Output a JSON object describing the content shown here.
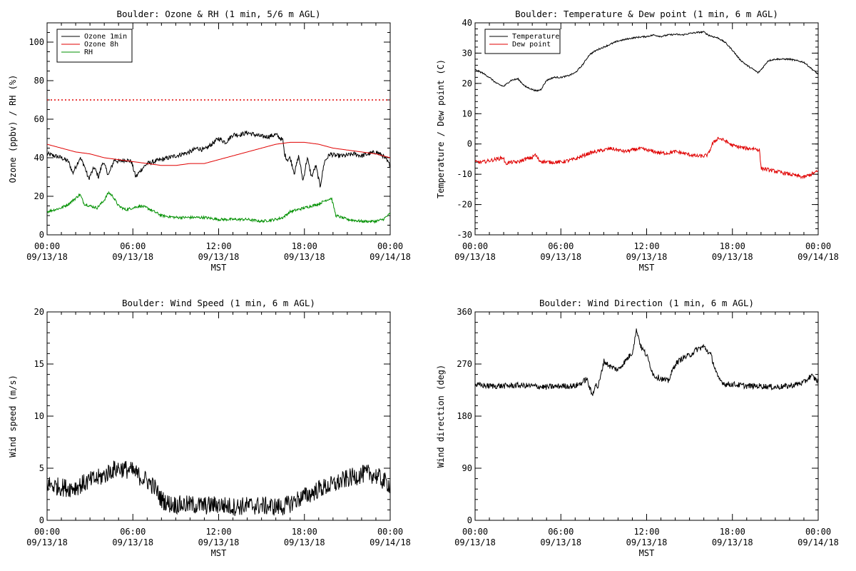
{
  "chart_data": [
    {
      "type": "line",
      "title": "Boulder: Ozone & RH (1 min, 5/6 m AGL)",
      "xlabel": "MST",
      "ylabel": "Ozone (ppbv) / RH (%)",
      "xlim_hours": [
        0,
        24
      ],
      "x_ticks": [
        {
          "time": "00:00",
          "date": "09/13/18"
        },
        {
          "time": "06:00",
          "date": "09/13/18"
        },
        {
          "time": "12:00",
          "date": "09/13/18"
        },
        {
          "time": "18:00",
          "date": "09/13/18"
        },
        {
          "time": "00:00",
          "date": "09/14/18"
        }
      ],
      "ylim": [
        0,
        110
      ],
      "y_ticks": [
        0,
        20,
        40,
        60,
        80,
        100
      ],
      "y_minor_step": 5,
      "legend_position": "top-left",
      "reference_line": {
        "y": 70,
        "color": "#e00000",
        "style": "dotted"
      },
      "series": [
        {
          "name": "Ozone 1min",
          "color": "#000000",
          "noise": 1.2,
          "x": [
            0,
            0.5,
            1,
            1.5,
            1.8,
            2.3,
            2.6,
            2.9,
            3.3,
            3.6,
            3.9,
            4.3,
            4.7,
            5.0,
            5.5,
            5.9,
            6.2,
            6.6,
            7.0,
            7.5,
            8.0,
            8.5,
            9.0,
            9.5,
            10.0,
            10.5,
            11.0,
            11.5,
            12.0,
            12.5,
            13.0,
            13.5,
            14.0,
            14.5,
            15.0,
            15.5,
            16.0,
            16.5,
            16.6,
            16.8,
            17.0,
            17.3,
            17.6,
            17.9,
            18.2,
            18.5,
            18.8,
            19.1,
            19.4,
            19.8,
            20.2,
            20.8,
            21.5,
            22.0,
            22.5,
            23.0,
            23.5,
            23.8,
            24.0
          ],
          "y": [
            42,
            41,
            40,
            38,
            32,
            40,
            36,
            29,
            35,
            30,
            38,
            31,
            39,
            38,
            39,
            38,
            30,
            34,
            37,
            38,
            39,
            40,
            41,
            42,
            43,
            45,
            44,
            47,
            50,
            48,
            52,
            52,
            53,
            52,
            51,
            51,
            52,
            49,
            42,
            39,
            40,
            32,
            41,
            28,
            40,
            30,
            36,
            25,
            38,
            42,
            41,
            41,
            42,
            41,
            42,
            43,
            41,
            38,
            36
          ]
        },
        {
          "name": "Ozone 8h",
          "color": "#e00000",
          "noise": 0,
          "x": [
            0,
            1,
            2,
            3,
            4,
            5,
            6,
            7,
            8,
            9,
            10,
            11,
            12,
            13,
            14,
            15,
            16,
            17,
            18,
            19,
            20,
            21,
            22,
            23,
            24
          ],
          "y": [
            47,
            45,
            43,
            42,
            40,
            39,
            38,
            37,
            36,
            36,
            37,
            37,
            39,
            41,
            43,
            45,
            47,
            48,
            48,
            47,
            45,
            44,
            43,
            42,
            40
          ]
        },
        {
          "name": "RH",
          "color": "#009000",
          "noise": 0.7,
          "x": [
            0,
            0.5,
            1,
            1.5,
            2,
            2.3,
            2.6,
            3,
            3.5,
            4,
            4.3,
            4.6,
            5,
            5.5,
            6,
            6.5,
            7,
            7.5,
            8,
            9,
            10,
            11,
            12,
            13,
            14,
            15,
            16,
            16.5,
            17,
            17.5,
            18,
            18.5,
            19,
            19.5,
            19.9,
            20.2,
            21,
            22,
            23,
            23.5,
            24
          ],
          "y": [
            12,
            13,
            14,
            16,
            19,
            21,
            16,
            15,
            14,
            18,
            22,
            20,
            15,
            13,
            14,
            15,
            14,
            12,
            10,
            9,
            9,
            9,
            8,
            8,
            8,
            7,
            8,
            9,
            12,
            13,
            14,
            15,
            16,
            18,
            19,
            10,
            8,
            7,
            7,
            8,
            11
          ]
        }
      ]
    },
    {
      "type": "line",
      "title": "Boulder: Temperature & Dew point (1 min, 6 m AGL)",
      "xlabel": "MST",
      "ylabel": "Temperature / Dew point (C)",
      "xlim_hours": [
        0,
        24
      ],
      "x_ticks": [
        {
          "time": "00:00",
          "date": "09/13/18"
        },
        {
          "time": "06:00",
          "date": "09/13/18"
        },
        {
          "time": "12:00",
          "date": "09/13/18"
        },
        {
          "time": "18:00",
          "date": "09/13/18"
        },
        {
          "time": "00:00",
          "date": "09/14/18"
        }
      ],
      "ylim": [
        -30,
        40
      ],
      "y_ticks": [
        -30,
        -20,
        -10,
        0,
        10,
        20,
        30,
        40
      ],
      "y_minor_step": 2,
      "legend_position": "top-left",
      "series": [
        {
          "name": "Temperature",
          "color": "#000000",
          "noise": 0.25,
          "x": [
            0,
            0.5,
            1,
            1.5,
            2,
            2.5,
            3,
            3.5,
            4,
            4.3,
            4.6,
            5,
            5.5,
            6,
            6.5,
            7,
            7.5,
            8,
            8.5,
            9,
            9.5,
            10,
            10.5,
            11,
            11.5,
            12,
            12.5,
            13,
            13.5,
            14,
            14.5,
            15,
            15.5,
            16,
            16.3,
            16.6,
            17,
            17.5,
            18,
            18.5,
            19,
            19.5,
            19.8,
            20,
            20.5,
            21,
            21.5,
            22,
            22.5,
            23,
            23.5,
            24
          ],
          "y": [
            24.5,
            23.5,
            22,
            20,
            19,
            21,
            21.5,
            19,
            18,
            17.5,
            18,
            21,
            22,
            22,
            22.5,
            23.5,
            26,
            29.5,
            31,
            32,
            33,
            34,
            34.5,
            35,
            35.3,
            35.5,
            36,
            35.5,
            36,
            36.2,
            36,
            36.5,
            36.8,
            37,
            36,
            35.5,
            35,
            33.5,
            31,
            28,
            26,
            24.5,
            23.5,
            24.5,
            27.5,
            28,
            28,
            28,
            27.5,
            27,
            25,
            23
          ]
        },
        {
          "name": "Dew point",
          "color": "#e00000",
          "noise": 0.6,
          "x": [
            0,
            0.5,
            1,
            1.5,
            2,
            2.1,
            2.5,
            3,
            3.5,
            4,
            4.2,
            4.5,
            5,
            5.5,
            6,
            6.5,
            7,
            7.5,
            8,
            8.5,
            9,
            9.5,
            10,
            10.5,
            11,
            11.5,
            12,
            12.5,
            13,
            13.5,
            14,
            14.5,
            15,
            15.5,
            16,
            16.3,
            16.6,
            17,
            17.5,
            18,
            18.5,
            19,
            19.5,
            19.9,
            20,
            20.5,
            21,
            21.5,
            22,
            22.5,
            23,
            23.5,
            24
          ],
          "y": [
            -6,
            -6,
            -5.5,
            -5,
            -4.5,
            -6.5,
            -6,
            -6,
            -5,
            -4.5,
            -3.5,
            -5.5,
            -6,
            -6,
            -6,
            -5.5,
            -5,
            -4,
            -3,
            -2.5,
            -2,
            -1.5,
            -2,
            -2.5,
            -2,
            -1.5,
            -2,
            -2.5,
            -3,
            -3,
            -2.5,
            -3,
            -3.5,
            -4,
            -4,
            -3.5,
            0,
            2,
            1,
            -0.5,
            -1,
            -1.5,
            -1.5,
            -2,
            -8,
            -8.5,
            -9,
            -9.5,
            -10,
            -10.5,
            -11,
            -10,
            -9
          ]
        }
      ]
    },
    {
      "type": "line",
      "title": "Boulder: Wind Speed (1 min, 6 m AGL)",
      "xlabel": "MST",
      "ylabel": "Wind speed (m/s)",
      "xlim_hours": [
        0,
        24
      ],
      "x_ticks": [
        {
          "time": "00:00",
          "date": "09/13/18"
        },
        {
          "time": "06:00",
          "date": "09/13/18"
        },
        {
          "time": "12:00",
          "date": "09/13/18"
        },
        {
          "time": "18:00",
          "date": "09/13/18"
        },
        {
          "time": "00:00",
          "date": "09/14/18"
        }
      ],
      "ylim": [
        0,
        20
      ],
      "y_ticks": [
        0,
        5,
        10,
        15,
        20
      ],
      "y_minor_step": 1,
      "series": [
        {
          "name": "",
          "color": "#000000",
          "noise": 0.9,
          "x": [
            0,
            0.5,
            1,
            1.5,
            2,
            2.5,
            3,
            3.5,
            4,
            4.5,
            5,
            5.5,
            6,
            6.5,
            7,
            7.5,
            8,
            8.5,
            9,
            10,
            11,
            12,
            13,
            14,
            15,
            16,
            16.5,
            17,
            17.5,
            18,
            18.5,
            19,
            19.5,
            20,
            20.5,
            21,
            21.5,
            22,
            22.5,
            23,
            23.5,
            24
          ],
          "y": [
            3.5,
            3.3,
            3.2,
            3.1,
            3.2,
            3.5,
            3.8,
            4.0,
            4.3,
            4.8,
            5.0,
            4.9,
            4.7,
            4.2,
            3.8,
            3.2,
            2.0,
            1.6,
            1.5,
            1.5,
            1.4,
            1.5,
            1.3,
            1.4,
            1.4,
            1.3,
            1.3,
            1.6,
            2.0,
            2.3,
            2.6,
            3.0,
            3.2,
            3.4,
            3.7,
            4.0,
            4.2,
            4.4,
            4.5,
            4.3,
            3.8,
            3.4
          ]
        }
      ]
    },
    {
      "type": "line",
      "title": "Boulder: Wind Direction (1 min, 6 m AGL)",
      "xlabel": "MST",
      "ylabel": "Wind direction (deg)",
      "xlim_hours": [
        0,
        24
      ],
      "x_ticks": [
        {
          "time": "00:00",
          "date": "09/13/18"
        },
        {
          "time": "06:00",
          "date": "09/13/18"
        },
        {
          "time": "12:00",
          "date": "09/13/18"
        },
        {
          "time": "18:00",
          "date": "09/13/18"
        },
        {
          "time": "00:00",
          "date": "09/14/18"
        }
      ],
      "ylim": [
        0,
        360
      ],
      "y_ticks": [
        0,
        90,
        180,
        270,
        360
      ],
      "y_minor_step": 18,
      "series": [
        {
          "name": "",
          "color": "#000000",
          "noise": 5,
          "x": [
            0,
            1,
            2,
            3,
            4,
            5,
            6,
            7,
            7.5,
            7.8,
            8,
            8.2,
            8.4,
            8.6,
            8.8,
            9,
            9.5,
            10,
            10.5,
            11,
            11.3,
            11.6,
            12,
            12.5,
            13,
            13.5,
            14,
            14.5,
            15,
            15.5,
            16,
            16.5,
            17,
            17.5,
            18,
            19,
            20,
            21,
            22,
            23,
            23.5,
            24
          ],
          "y": [
            234,
            232,
            232,
            233,
            232,
            230,
            232,
            232,
            238,
            245,
            230,
            215,
            235,
            230,
            250,
            275,
            265,
            260,
            275,
            290,
            330,
            300,
            285,
            250,
            245,
            240,
            270,
            280,
            285,
            295,
            300,
            285,
            245,
            235,
            235,
            232,
            232,
            230,
            232,
            238,
            250,
            240
          ]
        }
      ]
    }
  ]
}
